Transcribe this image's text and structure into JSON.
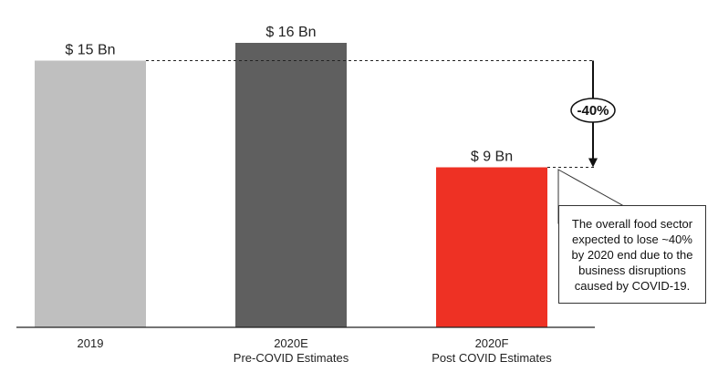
{
  "chart_data": {
    "type": "bar",
    "categories": [
      "2019",
      "2020E",
      "2020F"
    ],
    "category_sublabels": [
      "",
      "Pre-COVID Estimates",
      "Post COVID Estimates"
    ],
    "values": [
      15,
      16,
      9
    ],
    "value_labels": [
      "$ 15 Bn",
      "$ 16 Bn",
      "$ 9 Bn"
    ],
    "bar_colors": [
      "#bfbfbf",
      "#5f5f5f",
      "#ee3124"
    ],
    "ylim": [
      0,
      16.5
    ],
    "grid": false,
    "change_label": "-40%",
    "annotation": "The overall  food sector expected to lose  ~40% by 2020 end due to the business disruptions caused by COVID-19."
  }
}
